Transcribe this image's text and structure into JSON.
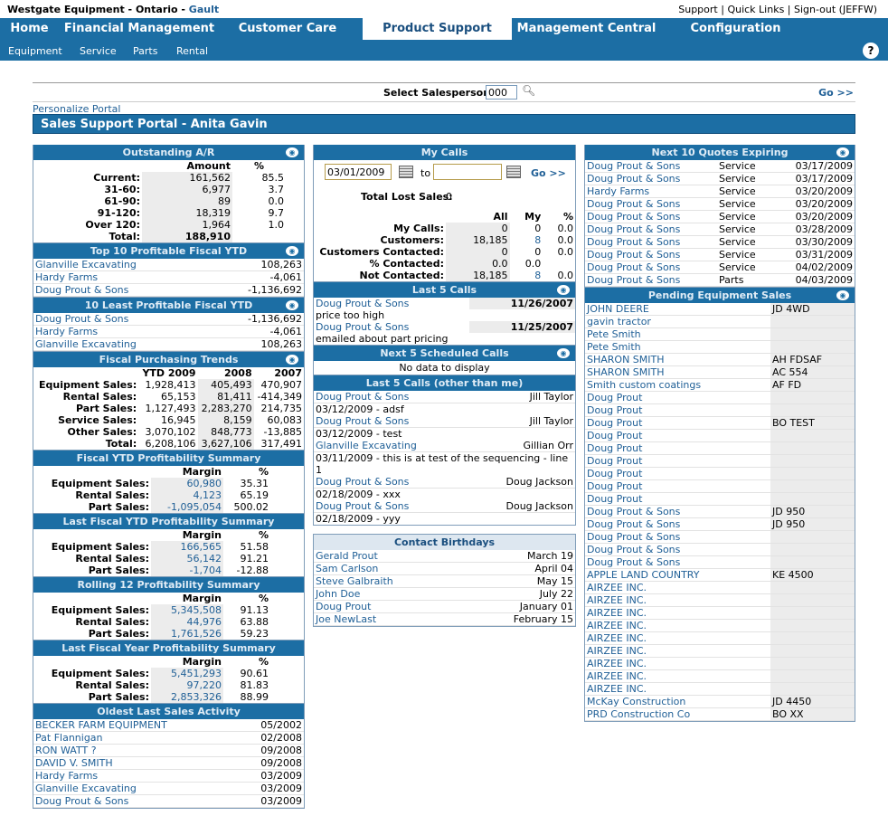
{
  "header": {
    "company": "Westgate Equipment - Ontario - ",
    "location": "Gault",
    "links": [
      "Support",
      "Quick Links",
      "Sign-out (JEFFW)"
    ]
  },
  "main_nav": [
    "Home",
    "Financial Management",
    "Customer Care",
    "Product Support",
    "Management Central",
    "Configuration"
  ],
  "sub_nav": [
    "Equipment",
    "Service",
    "Parts",
    "Rental"
  ],
  "help_label": "?",
  "salesperson": {
    "label": "Select Salesperson:",
    "value": "000",
    "go": "Go >>"
  },
  "personalize": "Personalize Portal",
  "portal_title": "Sales Support Portal - Anita Gavin",
  "ar": {
    "title": "Outstanding A/R",
    "headers": [
      "Amount",
      "%"
    ],
    "rows": [
      {
        "label": "Current:",
        "amount": "161,562",
        "pct": "85.5"
      },
      {
        "label": "31-60:",
        "amount": "6,977",
        "pct": "3.7"
      },
      {
        "label": "61-90:",
        "amount": "89",
        "pct": "0.0"
      },
      {
        "label": "91-120:",
        "amount": "18,319",
        "pct": "9.7"
      },
      {
        "label": "Over 120:",
        "amount": "1,964",
        "pct": "1.0"
      }
    ],
    "total_label": "Total:",
    "total": "188,910"
  },
  "top10": {
    "title": "Top 10 Profitable Fiscal YTD",
    "rows": [
      {
        "name": "Glanville Excavating",
        "value": "108,263"
      },
      {
        "name": "Hardy Farms",
        "value": "-4,061"
      },
      {
        "name": "Doug Prout & Sons",
        "value": "-1,136,692"
      }
    ]
  },
  "least10": {
    "title": "10 Least Profitable Fiscal YTD",
    "rows": [
      {
        "name": "Doug Prout & Sons",
        "value": "-1,136,692"
      },
      {
        "name": "Hardy Farms",
        "value": "-4,061"
      },
      {
        "name": "Glanville Excavating",
        "value": "108,263"
      }
    ]
  },
  "trends": {
    "title": "Fiscal Purchasing Trends",
    "headers": [
      "YTD 2009",
      "2008",
      "2007"
    ],
    "rows": [
      {
        "label": "Equipment Sales:",
        "v": [
          "1,928,413",
          "405,493",
          "470,907"
        ]
      },
      {
        "label": "Rental Sales:",
        "v": [
          "65,153",
          "81,411",
          "-414,349"
        ]
      },
      {
        "label": "Part Sales:",
        "v": [
          "1,127,493",
          "2,283,270",
          "214,735"
        ]
      },
      {
        "label": "Service Sales:",
        "v": [
          "16,945",
          "8,159",
          "60,083"
        ]
      },
      {
        "label": "Other Sales:",
        "v": [
          "3,070,102",
          "848,773",
          "-13,885"
        ]
      },
      {
        "label": "Total:",
        "v": [
          "6,208,106",
          "3,627,106",
          "317,491"
        ]
      }
    ]
  },
  "fytd": {
    "title": "Fiscal YTD Profitability Summary",
    "headers": [
      "Margin",
      "%"
    ],
    "rows": [
      {
        "label": "Equipment Sales:",
        "margin": "60,980",
        "pct": "35.31"
      },
      {
        "label": "Rental Sales:",
        "margin": "4,123",
        "pct": "65.19"
      },
      {
        "label": "Part Sales:",
        "margin": "-1,095,054",
        "pct": "500.02"
      }
    ]
  },
  "lfytd": {
    "title": "Last Fiscal YTD Profitability Summary",
    "headers": [
      "Margin",
      "%"
    ],
    "rows": [
      {
        "label": "Equipment Sales:",
        "margin": "166,565",
        "pct": "51.58"
      },
      {
        "label": "Rental Sales:",
        "margin": "56,142",
        "pct": "91.21"
      },
      {
        "label": "Part Sales:",
        "margin": "-1,704",
        "pct": "-12.88"
      }
    ]
  },
  "r12": {
    "title": "Rolling 12 Profitability Summary",
    "headers": [
      "Margin",
      "%"
    ],
    "rows": [
      {
        "label": "Equipment Sales:",
        "margin": "5,345,508",
        "pct": "91.13"
      },
      {
        "label": "Rental Sales:",
        "margin": "44,976",
        "pct": "63.88"
      },
      {
        "label": "Part Sales:",
        "margin": "1,761,526",
        "pct": "59.23"
      }
    ]
  },
  "lfy": {
    "title": "Last Fiscal Year Profitability Summary",
    "headers": [
      "Margin",
      "%"
    ],
    "rows": [
      {
        "label": "Equipment Sales:",
        "margin": "5,451,293",
        "pct": "90.61"
      },
      {
        "label": "Rental Sales:",
        "margin": "97,220",
        "pct": "81.83"
      },
      {
        "label": "Part Sales:",
        "margin": "2,853,326",
        "pct": "88.99"
      }
    ]
  },
  "oldest": {
    "title": "Oldest Last Sales Activity",
    "rows": [
      {
        "name": "BECKER FARM EQUIPMENT",
        "date": "05/2002"
      },
      {
        "name": "Pat Flannigan",
        "date": "02/2008"
      },
      {
        "name": "RON WATT ?",
        "date": "09/2008"
      },
      {
        "name": "DAVID V. SMITH",
        "date": "09/2008"
      },
      {
        "name": "Hardy Farms",
        "date": "03/2009"
      },
      {
        "name": "Glanville Excavating",
        "date": "03/2009"
      },
      {
        "name": "Doug Prout & Sons",
        "date": "03/2009"
      }
    ]
  },
  "mycalls": {
    "title": "My Calls",
    "from": "03/01/2009",
    "to_label": "to",
    "to": "",
    "go": "Go >>",
    "lost_label": "Total Lost Sales:",
    "lost": "0",
    "headers": [
      "All",
      "My",
      "%"
    ],
    "rows": [
      {
        "label": "My Calls:",
        "v": [
          "0",
          "0",
          "0.0"
        ]
      },
      {
        "label": "Customers:",
        "v": [
          "18,185",
          "8",
          "0.0"
        ]
      },
      {
        "label": "Customers Contacted:",
        "v": [
          "0",
          "0",
          "0.0"
        ]
      },
      {
        "label": "% Contacted:",
        "v": [
          "0.0",
          "0.0",
          ""
        ]
      },
      {
        "label": "Not Contacted:",
        "v": [
          "18,185",
          "8",
          "0.0"
        ]
      }
    ]
  },
  "last5": {
    "title": "Last 5 Calls",
    "rows": [
      {
        "name": "Doug Prout & Sons",
        "date": "11/26/2007",
        "note": "price too high"
      },
      {
        "name": "Doug Prout & Sons",
        "date": "11/25/2007",
        "note": "emailed about part pricing"
      }
    ]
  },
  "next5": {
    "title": "Next 5 Scheduled Calls",
    "empty": "No data to display"
  },
  "last5other": {
    "title": "Last 5 Calls (other than me)",
    "rows": [
      {
        "name": "Doug Prout & Sons",
        "who": "Jill Taylor",
        "note": "03/12/2009 - adsf"
      },
      {
        "name": "Doug Prout & Sons",
        "who": "Jill Taylor",
        "note": "03/12/2009 - test"
      },
      {
        "name": "Glanville Excavating",
        "who": "Gillian Orr",
        "note": "03/11/2009 - this is at test of the sequencing - line 1"
      },
      {
        "name": "Doug Prout & Sons",
        "who": "Doug Jackson",
        "note": "02/18/2009 - xxx"
      },
      {
        "name": "Doug Prout & Sons",
        "who": "Doug Jackson",
        "note": "02/18/2009 - yyy"
      }
    ]
  },
  "birthdays": {
    "title": "Contact Birthdays",
    "rows": [
      {
        "name": "Gerald Prout",
        "date": "March 19"
      },
      {
        "name": "Sam Carlson",
        "date": "April 04"
      },
      {
        "name": "Steve Galbraith",
        "date": "May 15"
      },
      {
        "name": "John Doe",
        "date": "July 22"
      },
      {
        "name": "Doug Prout",
        "date": "January 01"
      },
      {
        "name": "Joe NewLast",
        "date": "February 15"
      }
    ]
  },
  "quotes": {
    "title": "Next 10 Quotes Expiring",
    "rows": [
      {
        "name": "Doug Prout & Sons",
        "type": "Service",
        "date": "03/17/2009"
      },
      {
        "name": "Doug Prout & Sons",
        "type": "Service",
        "date": "03/17/2009"
      },
      {
        "name": "Hardy Farms",
        "type": "Service",
        "date": "03/20/2009"
      },
      {
        "name": "Doug Prout & Sons",
        "type": "Service",
        "date": "03/20/2009"
      },
      {
        "name": "Doug Prout & Sons",
        "type": "Service",
        "date": "03/20/2009"
      },
      {
        "name": "Doug Prout & Sons",
        "type": "Service",
        "date": "03/28/2009"
      },
      {
        "name": "Doug Prout & Sons",
        "type": "Service",
        "date": "03/30/2009"
      },
      {
        "name": "Doug Prout & Sons",
        "type": "Service",
        "date": "03/31/2009"
      },
      {
        "name": "Doug Prout & Sons",
        "type": "Service",
        "date": "04/02/2009"
      },
      {
        "name": "Doug Prout & Sons",
        "type": "Parts",
        "date": "04/03/2009"
      }
    ]
  },
  "pending": {
    "title": "Pending Equipment Sales",
    "rows": [
      {
        "name": "JOHN DEERE",
        "model": "JD 4WD"
      },
      {
        "name": "gavin tractor",
        "model": ""
      },
      {
        "name": "Pete Smith",
        "model": ""
      },
      {
        "name": "Pete Smith",
        "model": ""
      },
      {
        "name": "SHARON SMITH",
        "model": "AH FDSAF"
      },
      {
        "name": "SHARON SMITH",
        "model": "AC 554"
      },
      {
        "name": "Smith custom coatings",
        "model": "AF FD"
      },
      {
        "name": "Doug Prout",
        "model": ""
      },
      {
        "name": "Doug Prout",
        "model": ""
      },
      {
        "name": "Doug Prout",
        "model": "BO TEST"
      },
      {
        "name": "Doug Prout",
        "model": ""
      },
      {
        "name": "Doug Prout",
        "model": ""
      },
      {
        "name": "Doug Prout",
        "model": ""
      },
      {
        "name": "Doug Prout",
        "model": ""
      },
      {
        "name": "Doug Prout",
        "model": ""
      },
      {
        "name": "Doug Prout",
        "model": ""
      },
      {
        "name": "Doug Prout & Sons",
        "model": "JD 950"
      },
      {
        "name": "Doug Prout & Sons",
        "model": "JD 950"
      },
      {
        "name": "Doug Prout & Sons",
        "model": ""
      },
      {
        "name": "Doug Prout & Sons",
        "model": ""
      },
      {
        "name": "Doug Prout & Sons",
        "model": ""
      },
      {
        "name": "APPLE LAND COUNTRY",
        "model": "KE 4500"
      },
      {
        "name": "AIRZEE INC.",
        "model": ""
      },
      {
        "name": "AIRZEE INC.",
        "model": ""
      },
      {
        "name": "AIRZEE INC.",
        "model": ""
      },
      {
        "name": "AIRZEE INC.",
        "model": ""
      },
      {
        "name": "AIRZEE INC.",
        "model": ""
      },
      {
        "name": "AIRZEE INC.",
        "model": ""
      },
      {
        "name": "AIRZEE INC.",
        "model": ""
      },
      {
        "name": "AIRZEE INC.",
        "model": ""
      },
      {
        "name": "AIRZEE INC.",
        "model": ""
      },
      {
        "name": "McKay Construction",
        "model": "JD 4450"
      },
      {
        "name": "PRD Construction Co",
        "model": "BO XX"
      }
    ]
  }
}
